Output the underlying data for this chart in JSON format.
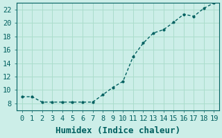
{
  "x": [
    0,
    1,
    2,
    3,
    4,
    5,
    6,
    7,
    8,
    9,
    10,
    11,
    12,
    13,
    14,
    15,
    16,
    17,
    18,
    19
  ],
  "y": [
    9.0,
    9.0,
    8.2,
    8.2,
    8.2,
    8.2,
    8.2,
    8.2,
    9.3,
    10.4,
    11.3,
    15.0,
    17.0,
    18.5,
    19.0,
    20.1,
    21.3,
    21.0,
    22.2,
    23.0
  ],
  "xlabel": "Humidex (Indice chaleur)",
  "ylabel": "",
  "xlim": [
    0,
    19
  ],
  "ylim": [
    7,
    23
  ],
  "yticks": [
    8,
    10,
    12,
    14,
    16,
    18,
    20,
    22
  ],
  "xticks": [
    0,
    1,
    2,
    3,
    4,
    5,
    6,
    7,
    8,
    9,
    10,
    11,
    12,
    13,
    14,
    15,
    16,
    17,
    18,
    19
  ],
  "bg_color": "#cceee8",
  "line_color": "#006060",
  "marker_color": "#006060",
  "grid_color": "#aaddcc",
  "spine_color": "#006060",
  "tick_color": "#006060",
  "label_color": "#006060",
  "xlabel_fontsize": 9,
  "tick_fontsize": 7.5
}
